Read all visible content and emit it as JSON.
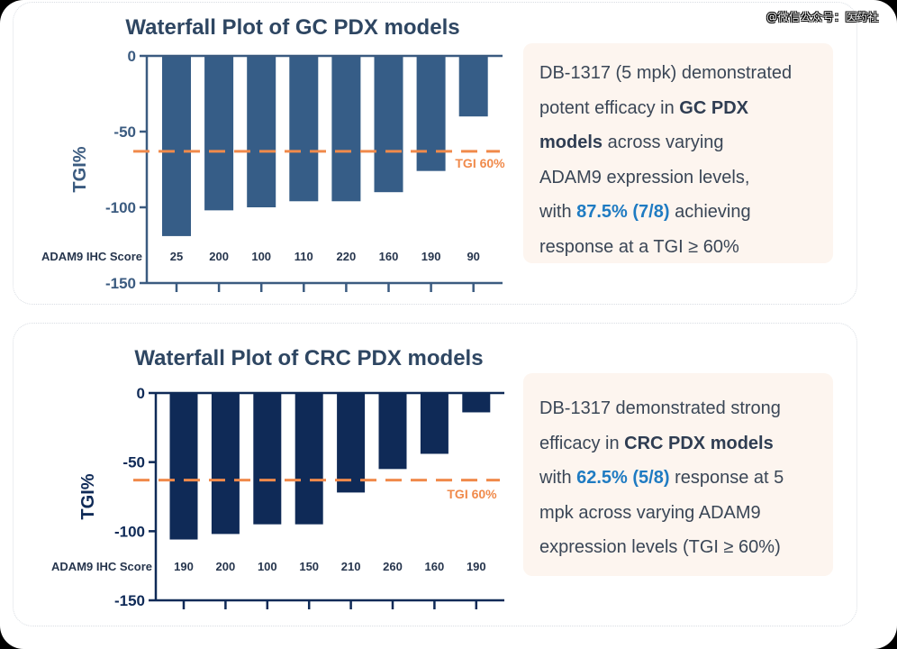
{
  "watermark": "@微信公众号：医药社",
  "colors": {
    "gc_bar": "#365d87",
    "crc_bar": "#0f2a57",
    "threshold": "#f08a4b",
    "axis_gc": "#3b5b80",
    "axis_crc": "#0f2a57",
    "title_gc": "#2e4662",
    "title_crc": "#2e4662",
    "highlight": "#1f7bc2",
    "note_bg": "#fdf5ef"
  },
  "chart_data": [
    {
      "type": "bar",
      "title": "Waterfall Plot of GC PDX models",
      "xlabel": "ADAM9 IHC Score",
      "ylabel": "TGI%",
      "ylim": [
        -150,
        0
      ],
      "yticks": [
        0,
        -50,
        -100,
        -150
      ],
      "grid": false,
      "categories": [
        "25",
        "200",
        "100",
        "110",
        "220",
        "160",
        "190",
        "90"
      ],
      "values": [
        -119,
        -102,
        -100,
        -96,
        -96,
        -90,
        -76,
        -40
      ],
      "threshold": {
        "value": -63,
        "label": "TGI 60%",
        "style": "dashed"
      }
    },
    {
      "type": "bar",
      "title": "Waterfall Plot of CRC PDX models",
      "xlabel": "ADAM9 IHC Score",
      "ylabel": "TGI%",
      "ylim": [
        -150,
        0
      ],
      "yticks": [
        0,
        -50,
        -100,
        -150
      ],
      "grid": false,
      "categories": [
        "190",
        "200",
        "100",
        "150",
        "210",
        "260",
        "160",
        "190"
      ],
      "values": [
        -106,
        -102,
        -95,
        -95,
        -72,
        -55,
        -44,
        -14
      ],
      "threshold": {
        "value": -63,
        "label": "TGI 60%",
        "style": "dashed"
      }
    }
  ],
  "notes": {
    "gc": {
      "l1": "DB-1317 (5 mpk) demonstrated",
      "l2a": "potent efficacy in ",
      "l2b": "GC PDX",
      "l3a": "models",
      "l3b": " across varying",
      "l4": "ADAM9 expression levels,",
      "l5a": "with ",
      "l5b": "87.5% (7/8)",
      "l5c": " achieving",
      "l6": "response at a TGI ≥ 60%"
    },
    "crc": {
      "l1": "DB-1317 demonstrated strong",
      "l2a": "efficacy in ",
      "l2b": "CRC PDX models",
      "l3a": "with ",
      "l3b": "62.5% (5/8)",
      "l3c": " response at 5",
      "l4": "mpk across varying ADAM9",
      "l5": "expression levels (TGI ≥ 60%)"
    }
  }
}
